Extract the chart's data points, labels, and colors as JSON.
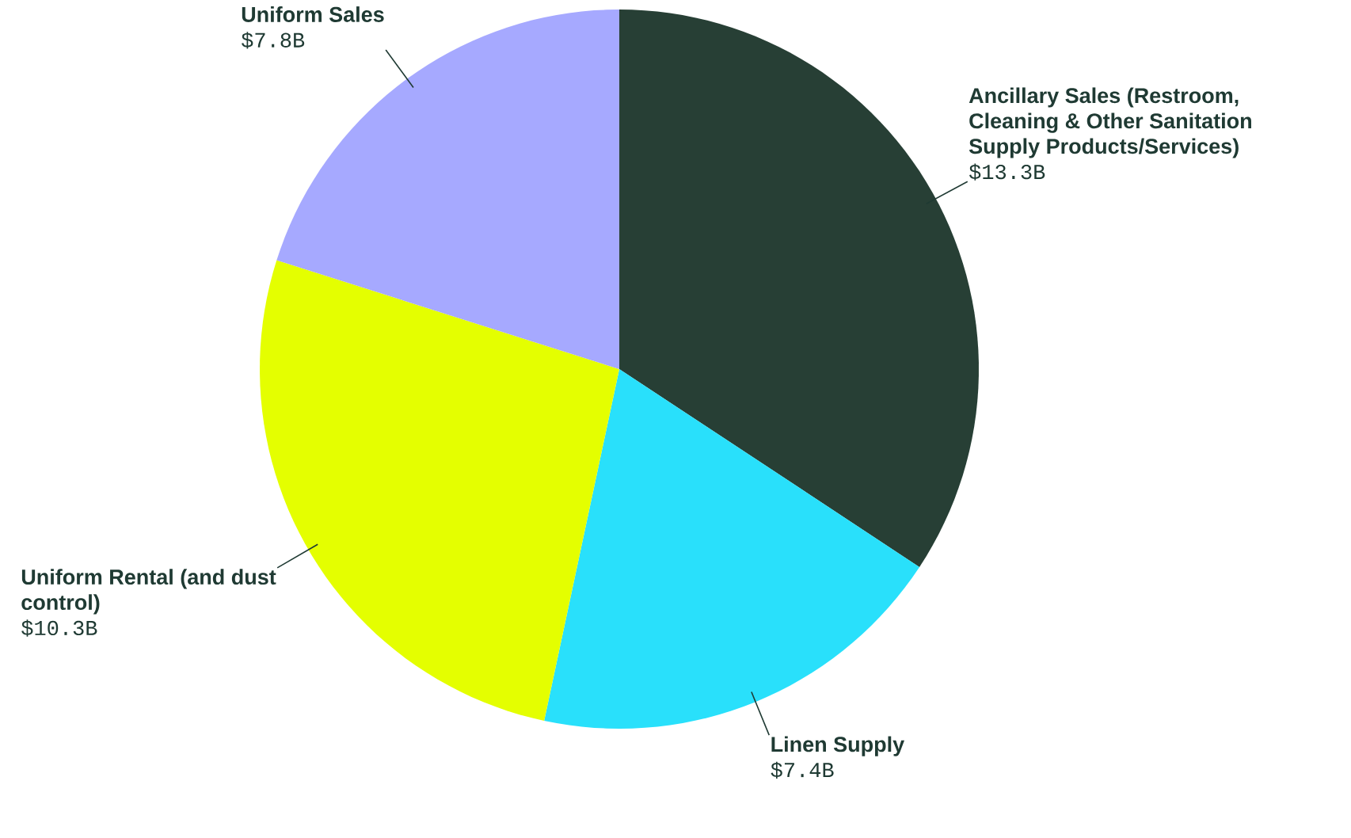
{
  "chart_data": {
    "type": "pie",
    "categories": [
      "Ancillary Sales (Restroom, Cleaning & Other Sanitation Supply Products/Services)",
      "Linen Supply",
      "Uniform Rental (and dust control)",
      "Uniform Sales"
    ],
    "values": [
      13.3,
      7.4,
      10.3,
      7.8
    ],
    "value_labels": [
      "$13.3B",
      "$7.4B",
      "$10.3B",
      "$7.8B"
    ],
    "colors": [
      "#273f35",
      "#29e0fb",
      "#e4ff00",
      "#a6a9ff"
    ]
  }
}
